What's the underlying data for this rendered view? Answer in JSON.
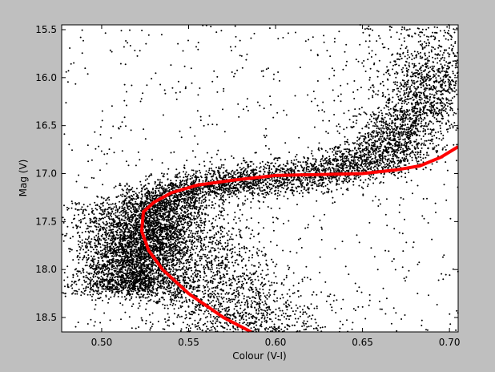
{
  "chart_data": {
    "type": "scatter",
    "title": "",
    "xlabel": "Colour (V-I)",
    "ylabel": "Mag (V)",
    "xlim": [
      0.477,
      0.705
    ],
    "ylim": [
      18.65,
      15.45
    ],
    "y_inverted": true,
    "grid": false,
    "xticks": [
      0.5,
      0.55,
      0.6,
      0.65,
      0.7
    ],
    "xtick_labels": [
      "0.50",
      "0.55",
      "0.60",
      "0.65",
      "0.70"
    ],
    "yticks": [
      15.5,
      16.0,
      16.5,
      17.0,
      17.5,
      18.0,
      18.5
    ],
    "ytick_labels": [
      "15.5",
      "16.0",
      "16.5",
      "17.0",
      "17.5",
      "18.0",
      "18.5"
    ],
    "background_color": "#bfbfbf",
    "plot_background_color": "#ffffff",
    "series": [
      {
        "kind": "scatter",
        "color": "#000000",
        "values_note": "",
        "density_ridge": [
          {
            "x": 0.515,
            "y": 18.2
          },
          {
            "x": 0.52,
            "y": 17.85
          },
          {
            "x": 0.522,
            "y": 17.6
          },
          {
            "x": 0.53,
            "y": 17.3
          },
          {
            "x": 0.555,
            "y": 17.13
          },
          {
            "x": 0.59,
            "y": 17.06
          },
          {
            "x": 0.63,
            "y": 17.0
          },
          {
            "x": 0.66,
            "y": 16.8
          },
          {
            "x": 0.68,
            "y": 16.4
          },
          {
            "x": 0.695,
            "y": 15.9
          }
        ]
      },
      {
        "kind": "line",
        "color": "#ff0000",
        "points": [
          {
            "x": 0.586,
            "y": 18.65
          },
          {
            "x": 0.57,
            "y": 18.5
          },
          {
            "x": 0.55,
            "y": 18.25
          },
          {
            "x": 0.535,
            "y": 18.0
          },
          {
            "x": 0.527,
            "y": 17.8
          },
          {
            "x": 0.523,
            "y": 17.6
          },
          {
            "x": 0.524,
            "y": 17.4
          },
          {
            "x": 0.53,
            "y": 17.3
          },
          {
            "x": 0.54,
            "y": 17.2
          },
          {
            "x": 0.555,
            "y": 17.12
          },
          {
            "x": 0.575,
            "y": 17.07
          },
          {
            "x": 0.6,
            "y": 17.02
          },
          {
            "x": 0.625,
            "y": 17.01
          },
          {
            "x": 0.65,
            "y": 17.0
          },
          {
            "x": 0.67,
            "y": 16.96
          },
          {
            "x": 0.683,
            "y": 16.92
          },
          {
            "x": 0.695,
            "y": 16.83
          },
          {
            "x": 0.705,
            "y": 16.72
          }
        ]
      }
    ]
  }
}
